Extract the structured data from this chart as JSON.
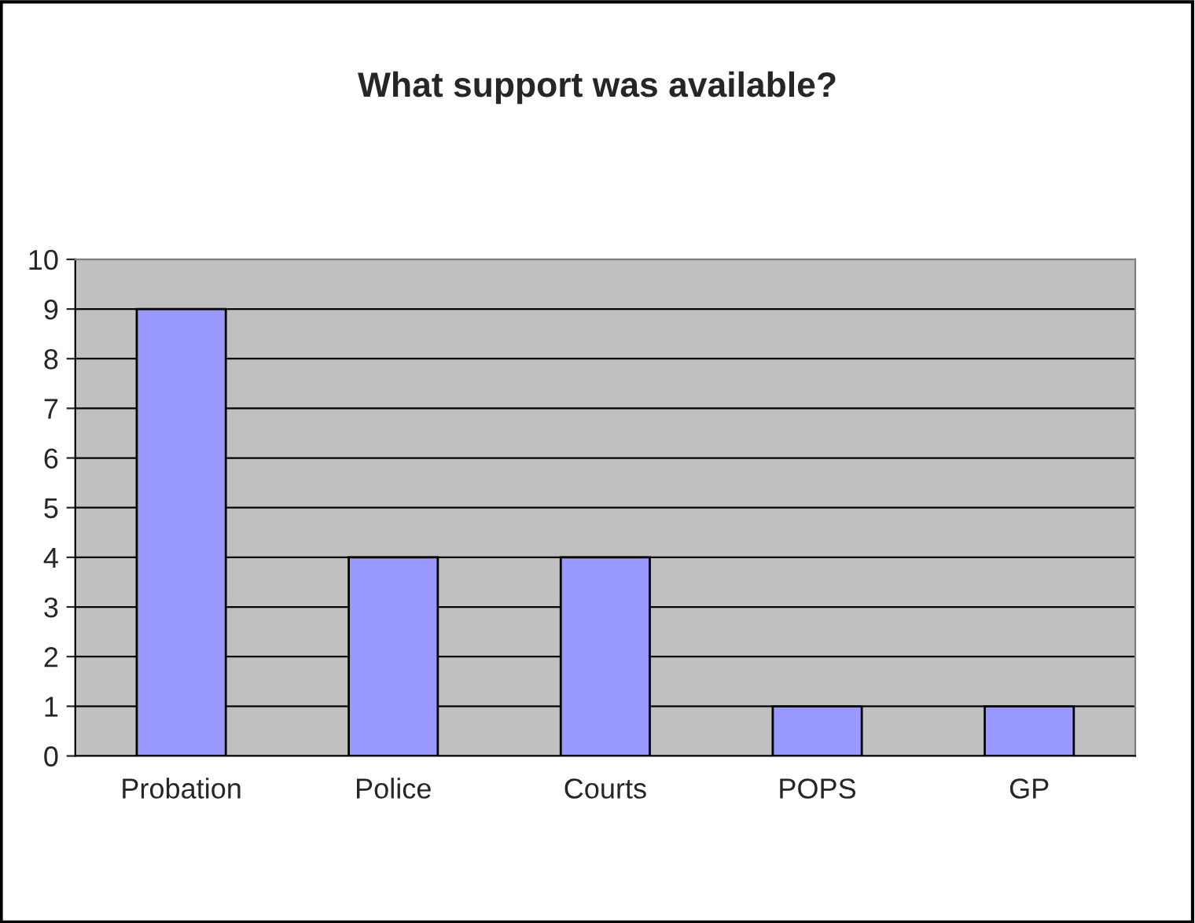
{
  "chart_data": {
    "type": "bar",
    "title": "What support was available?",
    "categories": [
      "Probation",
      "Police",
      "Courts",
      "POPS",
      "GP"
    ],
    "values": [
      9,
      4,
      4,
      1,
      1
    ],
    "color": "#9999ff",
    "ylim": [
      0,
      10
    ],
    "yticks": [
      0,
      1,
      2,
      3,
      4,
      5,
      6,
      7,
      8,
      9,
      10
    ],
    "grid": "y",
    "legend": false
  }
}
